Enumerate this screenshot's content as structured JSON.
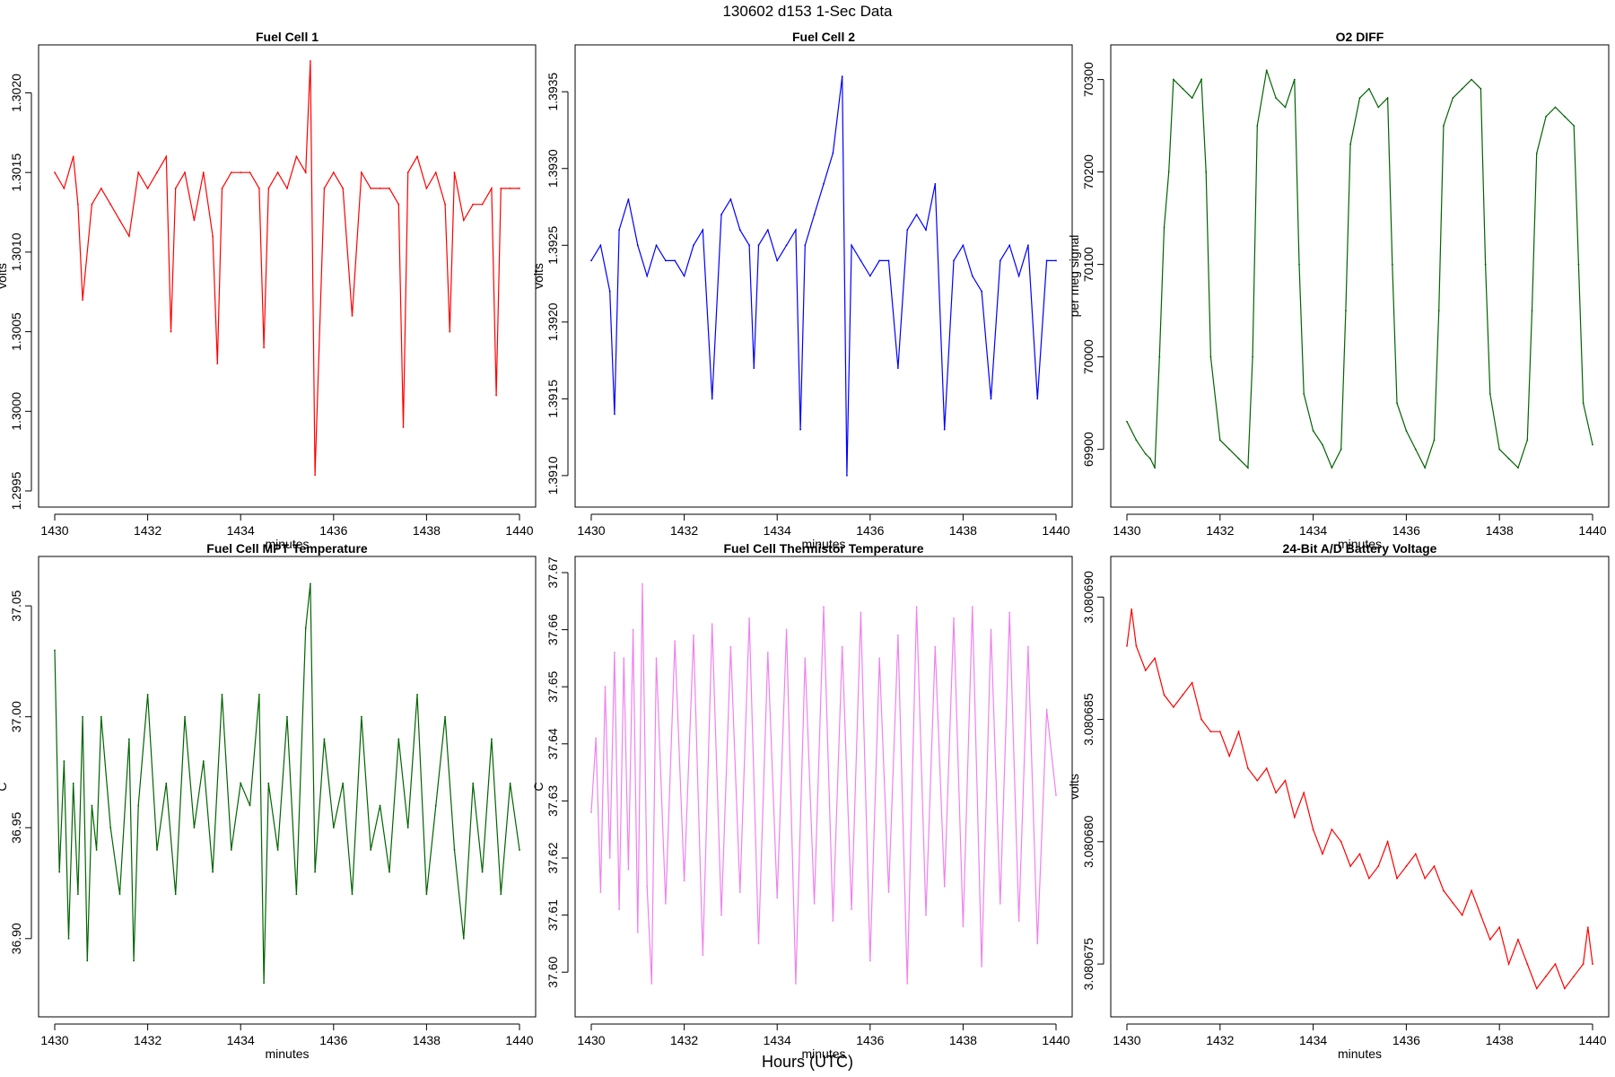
{
  "page": {
    "title": "130602   d153   1-Sec Data",
    "footer_label": "Hours (UTC)"
  },
  "chart_data": [
    {
      "type": "line",
      "title": "Fuel Cell 1",
      "xlabel": "minutes",
      "ylabel": "volts",
      "color": "#ff0000",
      "xlim": [
        1430,
        1440
      ],
      "ylim": [
        1.2995,
        1.3022
      ],
      "x_ticks": [
        "1430",
        "1432",
        "1434",
        "1436",
        "1438",
        "1440"
      ],
      "y_ticks": [
        "1.2995",
        "1.3000",
        "1.3005",
        "1.3010",
        "1.3015",
        "1.3020"
      ],
      "series": [
        {
          "x": [
            1430.0,
            1430.2,
            1430.4,
            1430.5,
            1430.6,
            1430.8,
            1431.0,
            1431.2,
            1431.4,
            1431.6,
            1431.8,
            1432.0,
            1432.2,
            1432.4,
            1432.5,
            1432.6,
            1432.8,
            1433.0,
            1433.2,
            1433.4,
            1433.5,
            1433.6,
            1433.8,
            1434.0,
            1434.2,
            1434.4,
            1434.5,
            1434.6,
            1434.8,
            1435.0,
            1435.2,
            1435.4,
            1435.5,
            1435.6,
            1435.8,
            1436.0,
            1436.2,
            1436.4,
            1436.6,
            1436.8,
            1437.0,
            1437.2,
            1437.4,
            1437.5,
            1437.6,
            1437.8,
            1438.0,
            1438.2,
            1438.4,
            1438.5,
            1438.6,
            1438.8,
            1439.0,
            1439.2,
            1439.4,
            1439.5,
            1439.6,
            1439.8,
            1440.0
          ],
          "y": [
            1.3015,
            1.3014,
            1.3016,
            1.3013,
            1.3007,
            1.3013,
            1.3014,
            1.3013,
            1.3012,
            1.3011,
            1.3015,
            1.3014,
            1.3015,
            1.3016,
            1.3005,
            1.3014,
            1.3015,
            1.3012,
            1.3015,
            1.3011,
            1.3003,
            1.3014,
            1.3015,
            1.3015,
            1.3015,
            1.3014,
            1.3004,
            1.3014,
            1.3015,
            1.3014,
            1.3016,
            1.3015,
            1.3022,
            1.2996,
            1.3014,
            1.3015,
            1.3014,
            1.3006,
            1.3015,
            1.3014,
            1.3014,
            1.3014,
            1.3013,
            1.2999,
            1.3015,
            1.3016,
            1.3014,
            1.3015,
            1.3013,
            1.3005,
            1.3015,
            1.3012,
            1.3013,
            1.3013,
            1.3014,
            1.3001,
            1.3014,
            1.3014,
            1.3014
          ]
        }
      ]
    },
    {
      "type": "line",
      "title": "Fuel Cell 2",
      "xlabel": "minutes",
      "ylabel": "volts",
      "color": "#0000ff",
      "xlim": [
        1430,
        1440
      ],
      "ylim": [
        1.3909,
        1.3937
      ],
      "x_ticks": [
        "1430",
        "1432",
        "1434",
        "1436",
        "1438",
        "1440"
      ],
      "y_ticks": [
        "1.3910",
        "1.3915",
        "1.3920",
        "1.3925",
        "1.3930",
        "1.3935"
      ],
      "series": [
        {
          "x": [
            1430.0,
            1430.2,
            1430.4,
            1430.5,
            1430.6,
            1430.8,
            1431.0,
            1431.2,
            1431.4,
            1431.6,
            1431.8,
            1432.0,
            1432.2,
            1432.4,
            1432.6,
            1432.8,
            1433.0,
            1433.2,
            1433.4,
            1433.5,
            1433.6,
            1433.8,
            1434.0,
            1434.2,
            1434.4,
            1434.5,
            1434.6,
            1434.8,
            1435.0,
            1435.2,
            1435.4,
            1435.5,
            1435.6,
            1435.8,
            1436.0,
            1436.2,
            1436.4,
            1436.6,
            1436.8,
            1437.0,
            1437.2,
            1437.4,
            1437.6,
            1437.8,
            1438.0,
            1438.2,
            1438.4,
            1438.6,
            1438.8,
            1439.0,
            1439.2,
            1439.4,
            1439.6,
            1439.8,
            1440.0
          ],
          "y": [
            1.3924,
            1.3925,
            1.3922,
            1.3914,
            1.3926,
            1.3928,
            1.3925,
            1.3923,
            1.3925,
            1.3924,
            1.3924,
            1.3923,
            1.3925,
            1.3926,
            1.3915,
            1.3927,
            1.3928,
            1.3926,
            1.3925,
            1.3917,
            1.3925,
            1.3926,
            1.3924,
            1.3925,
            1.3926,
            1.3913,
            1.3925,
            1.3927,
            1.3929,
            1.3931,
            1.3936,
            1.391,
            1.3925,
            1.3924,
            1.3923,
            1.3924,
            1.3924,
            1.3917,
            1.3926,
            1.3927,
            1.3926,
            1.3929,
            1.3913,
            1.3924,
            1.3925,
            1.3923,
            1.3922,
            1.3915,
            1.3924,
            1.3925,
            1.3923,
            1.3925,
            1.3915,
            1.3924,
            1.3924
          ]
        }
      ]
    },
    {
      "type": "line",
      "title": "O2 DIFF",
      "xlabel": "minutes",
      "ylabel": "per meg signal",
      "color": "#006400",
      "xlim": [
        1430,
        1440
      ],
      "ylim": [
        69855,
        70320
      ],
      "x_ticks": [
        "1430",
        "1432",
        "1434",
        "1436",
        "1438",
        "1440"
      ],
      "y_ticks": [
        "69900",
        "70000",
        "70100",
        "70200",
        "70300"
      ],
      "series": [
        {
          "x": [
            1430.0,
            1430.2,
            1430.4,
            1430.5,
            1430.6,
            1430.7,
            1430.8,
            1430.9,
            1431.0,
            1431.2,
            1431.4,
            1431.6,
            1431.7,
            1431.8,
            1432.0,
            1432.2,
            1432.4,
            1432.6,
            1432.7,
            1432.8,
            1433.0,
            1433.2,
            1433.4,
            1433.6,
            1433.7,
            1433.8,
            1434.0,
            1434.2,
            1434.4,
            1434.6,
            1434.7,
            1434.8,
            1435.0,
            1435.2,
            1435.4,
            1435.6,
            1435.7,
            1435.8,
            1436.0,
            1436.2,
            1436.4,
            1436.6,
            1436.7,
            1436.8,
            1437.0,
            1437.2,
            1437.4,
            1437.6,
            1437.7,
            1437.8,
            1438.0,
            1438.2,
            1438.4,
            1438.6,
            1438.7,
            1438.8,
            1439.0,
            1439.2,
            1439.4,
            1439.6,
            1439.7,
            1439.8,
            1440.0
          ],
          "y": [
            69930,
            69910,
            69895,
            69890,
            69880,
            70000,
            70140,
            70200,
            70300,
            70290,
            70280,
            70300,
            70200,
            70000,
            69910,
            69900,
            69890,
            69880,
            70000,
            70250,
            70310,
            70280,
            70270,
            70300,
            70100,
            69960,
            69920,
            69905,
            69880,
            69900,
            70050,
            70230,
            70280,
            70290,
            70270,
            70280,
            70100,
            69950,
            69920,
            69900,
            69880,
            69910,
            70050,
            70250,
            70280,
            70290,
            70300,
            70290,
            70100,
            69960,
            69900,
            69890,
            69880,
            69910,
            70050,
            70220,
            70260,
            70270,
            70260,
            70250,
            70100,
            69950,
            69905
          ]
        }
      ]
    },
    {
      "type": "line",
      "title": "Fuel Cell MPT Temperature",
      "xlabel": "minutes",
      "ylabel": "C",
      "color": "#006400",
      "xlim": [
        1430,
        1440
      ],
      "ylim": [
        36.872,
        37.065
      ],
      "x_ticks": [
        "1430",
        "1432",
        "1434",
        "1436",
        "1438",
        "1440"
      ],
      "y_ticks": [
        "36.90",
        "36.95",
        "37.00",
        "37.05"
      ],
      "series": [
        {
          "x": [
            1430.0,
            1430.1,
            1430.2,
            1430.3,
            1430.4,
            1430.5,
            1430.6,
            1430.7,
            1430.8,
            1430.9,
            1431.0,
            1431.2,
            1431.4,
            1431.6,
            1431.7,
            1431.8,
            1432.0,
            1432.2,
            1432.4,
            1432.6,
            1432.8,
            1433.0,
            1433.2,
            1433.4,
            1433.6,
            1433.8,
            1434.0,
            1434.2,
            1434.4,
            1434.5,
            1434.6,
            1434.8,
            1435.0,
            1435.2,
            1435.4,
            1435.5,
            1435.6,
            1435.8,
            1436.0,
            1436.2,
            1436.4,
            1436.6,
            1436.8,
            1437.0,
            1437.2,
            1437.4,
            1437.6,
            1437.8,
            1438.0,
            1438.2,
            1438.4,
            1438.6,
            1438.8,
            1439.0,
            1439.2,
            1439.4,
            1439.6,
            1439.8,
            1440.0
          ],
          "y": [
            37.03,
            36.93,
            36.98,
            36.9,
            36.97,
            36.92,
            37.0,
            36.89,
            36.96,
            36.94,
            37.0,
            36.95,
            36.92,
            36.99,
            36.89,
            36.96,
            37.01,
            36.94,
            36.97,
            36.92,
            37.0,
            36.95,
            36.98,
            36.93,
            37.01,
            36.94,
            36.97,
            36.96,
            37.01,
            36.88,
            36.97,
            36.94,
            37.0,
            36.92,
            37.04,
            37.06,
            36.93,
            36.99,
            36.95,
            36.97,
            36.92,
            37.0,
            36.94,
            36.96,
            36.93,
            36.99,
            36.95,
            37.01,
            36.92,
            36.96,
            37.0,
            36.94,
            36.9,
            36.97,
            36.93,
            36.99,
            36.92,
            36.97,
            36.94
          ]
        }
      ]
    },
    {
      "type": "line",
      "title": "Fuel Cell Thermistor Temperature",
      "xlabel": "minutes",
      "ylabel": "C",
      "color": "#ee82ee",
      "xlim": [
        1430,
        1440
      ],
      "ylim": [
        37.595,
        37.67
      ],
      "x_ticks": [
        "1430",
        "1432",
        "1434",
        "1436",
        "1438",
        "1440"
      ],
      "y_ticks": [
        "37.60",
        "37.61",
        "37.62",
        "37.63",
        "37.64",
        "37.65",
        "37.66",
        "37.67"
      ],
      "series": [
        {
          "x": [
            1430.0,
            1430.1,
            1430.2,
            1430.3,
            1430.4,
            1430.5,
            1430.6,
            1430.7,
            1430.8,
            1430.9,
            1431.0,
            1431.1,
            1431.2,
            1431.3,
            1431.4,
            1431.6,
            1431.8,
            1432.0,
            1432.2,
            1432.4,
            1432.6,
            1432.8,
            1433.0,
            1433.2,
            1433.4,
            1433.6,
            1433.8,
            1434.0,
            1434.2,
            1434.4,
            1434.6,
            1434.8,
            1435.0,
            1435.2,
            1435.4,
            1435.6,
            1435.8,
            1436.0,
            1436.2,
            1436.4,
            1436.6,
            1436.8,
            1437.0,
            1437.2,
            1437.4,
            1437.6,
            1437.8,
            1438.0,
            1438.2,
            1438.4,
            1438.6,
            1438.8,
            1439.0,
            1439.2,
            1439.4,
            1439.6,
            1439.8,
            1440.0
          ],
          "y": [
            37.628,
            37.641,
            37.614,
            37.65,
            37.62,
            37.656,
            37.611,
            37.655,
            37.618,
            37.66,
            37.607,
            37.668,
            37.615,
            37.598,
            37.655,
            37.612,
            37.658,
            37.616,
            37.659,
            37.603,
            37.661,
            37.61,
            37.657,
            37.614,
            37.662,
            37.605,
            37.656,
            37.613,
            37.66,
            37.598,
            37.655,
            37.612,
            37.664,
            37.609,
            37.657,
            37.611,
            37.663,
            37.602,
            37.655,
            37.614,
            37.659,
            37.598,
            37.664,
            37.61,
            37.657,
            37.615,
            37.662,
            37.608,
            37.664,
            37.601,
            37.66,
            37.612,
            37.663,
            37.609,
            37.657,
            37.605,
            37.646,
            37.631
          ]
        }
      ]
    },
    {
      "type": "line",
      "title": "24-Bit A/D Battery Voltage",
      "xlabel": "minutes",
      "ylabel": "volts",
      "color": "#ff0000",
      "xlim": [
        1430,
        1440
      ],
      "ylim": [
        3.0806735,
        3.080691
      ],
      "x_ticks": [
        "1430",
        "1432",
        "1434",
        "1436",
        "1438",
        "1440"
      ],
      "y_ticks": [
        "3.080675",
        "3.080680",
        "3.080685",
        "3.080690"
      ],
      "series": [
        {
          "x": [
            1430.0,
            1430.1,
            1430.2,
            1430.4,
            1430.6,
            1430.8,
            1431.0,
            1431.2,
            1431.4,
            1431.6,
            1431.8,
            1432.0,
            1432.2,
            1432.4,
            1432.6,
            1432.8,
            1433.0,
            1433.2,
            1433.4,
            1433.6,
            1433.8,
            1434.0,
            1434.2,
            1434.4,
            1434.6,
            1434.8,
            1435.0,
            1435.2,
            1435.4,
            1435.6,
            1435.8,
            1436.0,
            1436.2,
            1436.4,
            1436.6,
            1436.8,
            1437.0,
            1437.2,
            1437.4,
            1437.6,
            1437.8,
            1438.0,
            1438.2,
            1438.4,
            1438.6,
            1438.8,
            1439.0,
            1439.2,
            1439.4,
            1439.6,
            1439.8,
            1439.9,
            1440.0
          ],
          "y": [
            3.080688,
            3.0806895,
            3.080688,
            3.080687,
            3.0806875,
            3.080686,
            3.0806855,
            3.080686,
            3.0806865,
            3.080685,
            3.0806845,
            3.0806845,
            3.0806835,
            3.0806845,
            3.080683,
            3.0806825,
            3.080683,
            3.080682,
            3.0806825,
            3.080681,
            3.080682,
            3.0806805,
            3.0806795,
            3.0806805,
            3.08068,
            3.080679,
            3.0806795,
            3.0806785,
            3.080679,
            3.08068,
            3.0806785,
            3.080679,
            3.0806795,
            3.0806785,
            3.080679,
            3.080678,
            3.0806775,
            3.080677,
            3.080678,
            3.080677,
            3.080676,
            3.0806765,
            3.080675,
            3.080676,
            3.080675,
            3.080674,
            3.0806745,
            3.080675,
            3.080674,
            3.0806745,
            3.080675,
            3.0806765,
            3.080675
          ]
        }
      ]
    }
  ]
}
